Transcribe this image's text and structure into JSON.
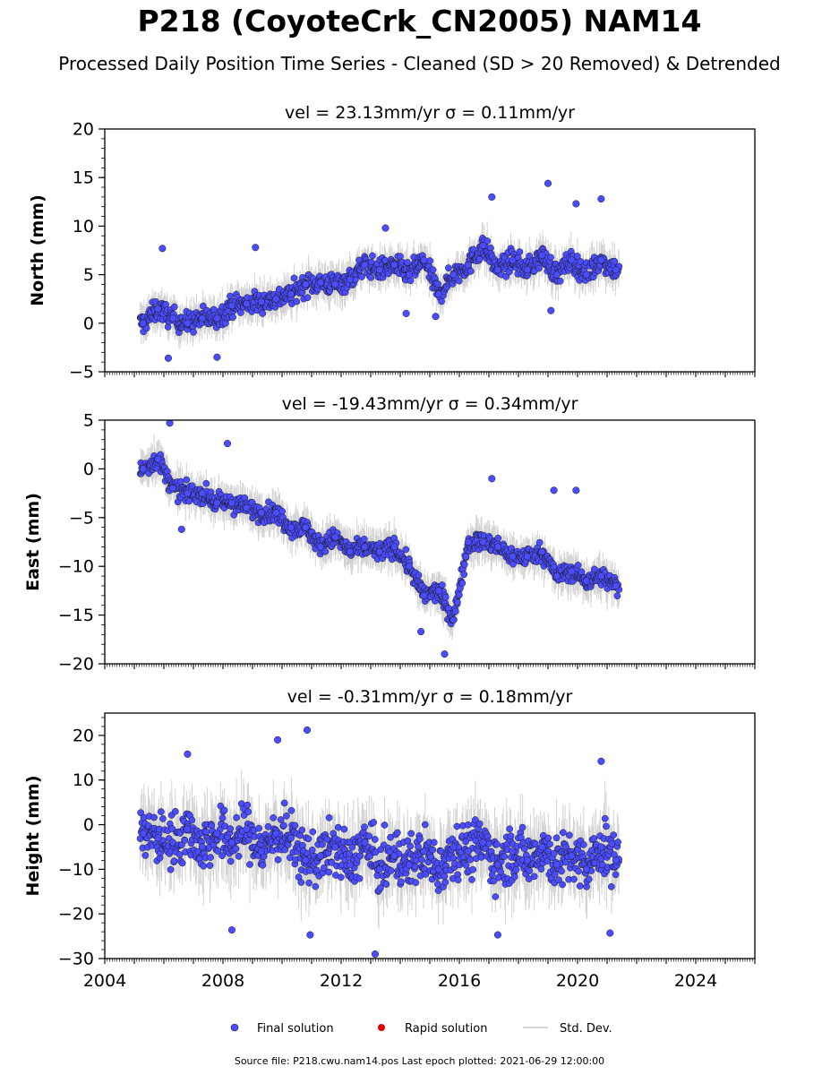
{
  "title": "P218 (CoyoteCrk_CN2005) NAM14",
  "subtitle": "Processed Daily Position Time Series - Cleaned (SD > 20 Removed) & Detrended",
  "legend": {
    "final_label": "Final solution",
    "rapid_label": "Rapid solution",
    "std_label": "Std. Dev."
  },
  "footer": "Source file: P218.cwu.nam14.pos  Last epoch plotted: 2021-06-29 12:00:00",
  "colors": {
    "final": "#4b4bff",
    "rapid": "#e00000",
    "std": "#c8c8c8"
  },
  "chart_data": [
    {
      "type": "scatter",
      "panel": "north",
      "title_prefix": "vel = 23.13mm/yr   ",
      "title_sigma": "σ = 0.11mm/yr",
      "ylabel": "North (mm)",
      "xlim": [
        2004,
        2026
      ],
      "ylim": [
        -5,
        20
      ],
      "yticks": [
        -5,
        0,
        5,
        10,
        15,
        20
      ],
      "ytick_labels": [
        "−5",
        "0",
        "5",
        "10",
        "15",
        "20"
      ],
      "grid": false,
      "series": [
        {
          "name": "Final solution",
          "x": [
            2005.3,
            2005.8,
            2006.3,
            2006.8,
            2007.3,
            2007.8,
            2008.3,
            2008.8,
            2009.3,
            2009.8,
            2010.3,
            2010.8,
            2011.3,
            2011.8,
            2012.3,
            2012.8,
            2013.3,
            2013.8,
            2014.3,
            2014.8,
            2015.3,
            2015.8,
            2016.3,
            2016.8,
            2017.3,
            2017.8,
            2018.3,
            2018.8,
            2019.3,
            2019.8,
            2020.3,
            2020.8,
            2021.3
          ],
          "y": [
            0.0,
            1.5,
            0.5,
            0.0,
            0.5,
            0.5,
            1.8,
            2.0,
            2.2,
            2.5,
            3.0,
            4.0,
            4.2,
            4.0,
            4.5,
            6.0,
            5.5,
            6.0,
            5.0,
            6.5,
            3.0,
            5.0,
            6.0,
            8.0,
            5.5,
            6.5,
            5.5,
            7.0,
            5.0,
            6.5,
            5.0,
            6.5,
            5.5
          ]
        }
      ],
      "annotations": [
        {
          "x": 2005.95,
          "y": 7.7
        },
        {
          "x": 2009.1,
          "y": 7.8
        },
        {
          "x": 2013.5,
          "y": 9.8
        },
        {
          "x": 2014.2,
          "y": 1.0
        },
        {
          "x": 2015.2,
          "y": 0.7
        },
        {
          "x": 2017.1,
          "y": 13.0
        },
        {
          "x": 2019.0,
          "y": 14.4
        },
        {
          "x": 2019.1,
          "y": 1.3
        },
        {
          "x": 2019.95,
          "y": 12.3
        },
        {
          "x": 2020.8,
          "y": 12.8
        },
        {
          "x": 2006.15,
          "y": -3.6
        },
        {
          "x": 2007.8,
          "y": -3.5
        }
      ]
    },
    {
      "type": "scatter",
      "panel": "east",
      "title_prefix": "vel = -19.43mm/yr   ",
      "title_sigma": "σ = 0.34mm/yr",
      "ylabel": "East (mm)",
      "xlim": [
        2004,
        2026
      ],
      "ylim": [
        -20,
        5
      ],
      "yticks": [
        -20,
        -15,
        -10,
        -5,
        0,
        5
      ],
      "ytick_labels": [
        "−20",
        "−15",
        "−10",
        "−5",
        "0",
        "5"
      ],
      "grid": false,
      "series": [
        {
          "name": "Final solution",
          "x": [
            2005.3,
            2005.8,
            2006.3,
            2006.8,
            2007.3,
            2007.8,
            2008.3,
            2008.8,
            2009.3,
            2009.8,
            2010.3,
            2010.8,
            2011.3,
            2011.8,
            2012.3,
            2012.8,
            2013.3,
            2013.8,
            2014.3,
            2014.8,
            2015.3,
            2015.8,
            2016.3,
            2016.8,
            2017.3,
            2017.8,
            2018.3,
            2018.8,
            2019.3,
            2019.8,
            2020.3,
            2020.8,
            2021.3
          ],
          "y": [
            0.0,
            1.0,
            -2.0,
            -2.5,
            -2.5,
            -3.5,
            -3.5,
            -4.0,
            -4.5,
            -4.5,
            -6.0,
            -6.0,
            -8.0,
            -7.0,
            -8.5,
            -8.0,
            -8.5,
            -8.0,
            -10.0,
            -13.0,
            -12.5,
            -15.5,
            -7.5,
            -7.5,
            -8.0,
            -9.0,
            -9.0,
            -8.5,
            -11.0,
            -10.5,
            -11.5,
            -11.0,
            -12.0
          ]
        }
      ],
      "annotations": [
        {
          "x": 2006.2,
          "y": 4.7
        },
        {
          "x": 2008.15,
          "y": 2.6
        },
        {
          "x": 2017.1,
          "y": -1.0
        },
        {
          "x": 2019.2,
          "y": -2.2
        },
        {
          "x": 2019.95,
          "y": -2.2
        },
        {
          "x": 2015.5,
          "y": -19.0
        },
        {
          "x": 2014.7,
          "y": -16.7
        },
        {
          "x": 2006.6,
          "y": -6.2
        }
      ]
    },
    {
      "type": "scatter",
      "panel": "height",
      "title_prefix": "vel = -0.31mm/yr   ",
      "title_sigma": "σ = 0.18mm/yr",
      "ylabel": "Height (mm)",
      "xlim": [
        2004,
        2026
      ],
      "ylim": [
        -30,
        25
      ],
      "yticks": [
        -30,
        -20,
        -10,
        0,
        10,
        20
      ],
      "ytick_labels": [
        "−30",
        "−20",
        "−10",
        "0",
        "10",
        "20"
      ],
      "xticks": [
        2004,
        2008,
        2012,
        2016,
        2020,
        2024
      ],
      "xtick_labels": [
        "2004",
        "2008",
        "2012",
        "2016",
        "2020",
        "2024"
      ],
      "grid": false,
      "series": [
        {
          "name": "Final solution",
          "x": [
            2005.3,
            2005.8,
            2006.3,
            2006.8,
            2007.3,
            2007.8,
            2008.3,
            2008.8,
            2009.3,
            2009.8,
            2010.3,
            2010.8,
            2011.3,
            2011.8,
            2012.3,
            2012.8,
            2013.3,
            2013.8,
            2014.3,
            2014.8,
            2015.3,
            2015.8,
            2016.3,
            2016.8,
            2017.3,
            2017.8,
            2018.3,
            2018.8,
            2019.3,
            2019.8,
            2020.3,
            2020.8,
            2021.3
          ],
          "y": [
            -2,
            -3,
            -4,
            -1,
            -5,
            -2,
            -4,
            -1,
            -6,
            -2,
            -3,
            -8,
            -7,
            -5,
            -9,
            -4,
            -10,
            -7,
            -9,
            -6,
            -10,
            -5,
            -6,
            -4,
            -9,
            -6,
            -8,
            -5,
            -9,
            -7,
            -10,
            -5,
            -8
          ]
        }
      ],
      "annotations": [
        {
          "x": 2009.85,
          "y": 19.0
        },
        {
          "x": 2010.85,
          "y": 21.2
        },
        {
          "x": 2013.15,
          "y": -29.0
        },
        {
          "x": 2010.95,
          "y": -24.7
        },
        {
          "x": 2008.3,
          "y": -23.6
        },
        {
          "x": 2020.8,
          "y": 14.2
        },
        {
          "x": 2021.1,
          "y": -24.3
        },
        {
          "x": 2006.8,
          "y": 15.8
        },
        {
          "x": 2017.3,
          "y": -24.7
        }
      ]
    }
  ]
}
